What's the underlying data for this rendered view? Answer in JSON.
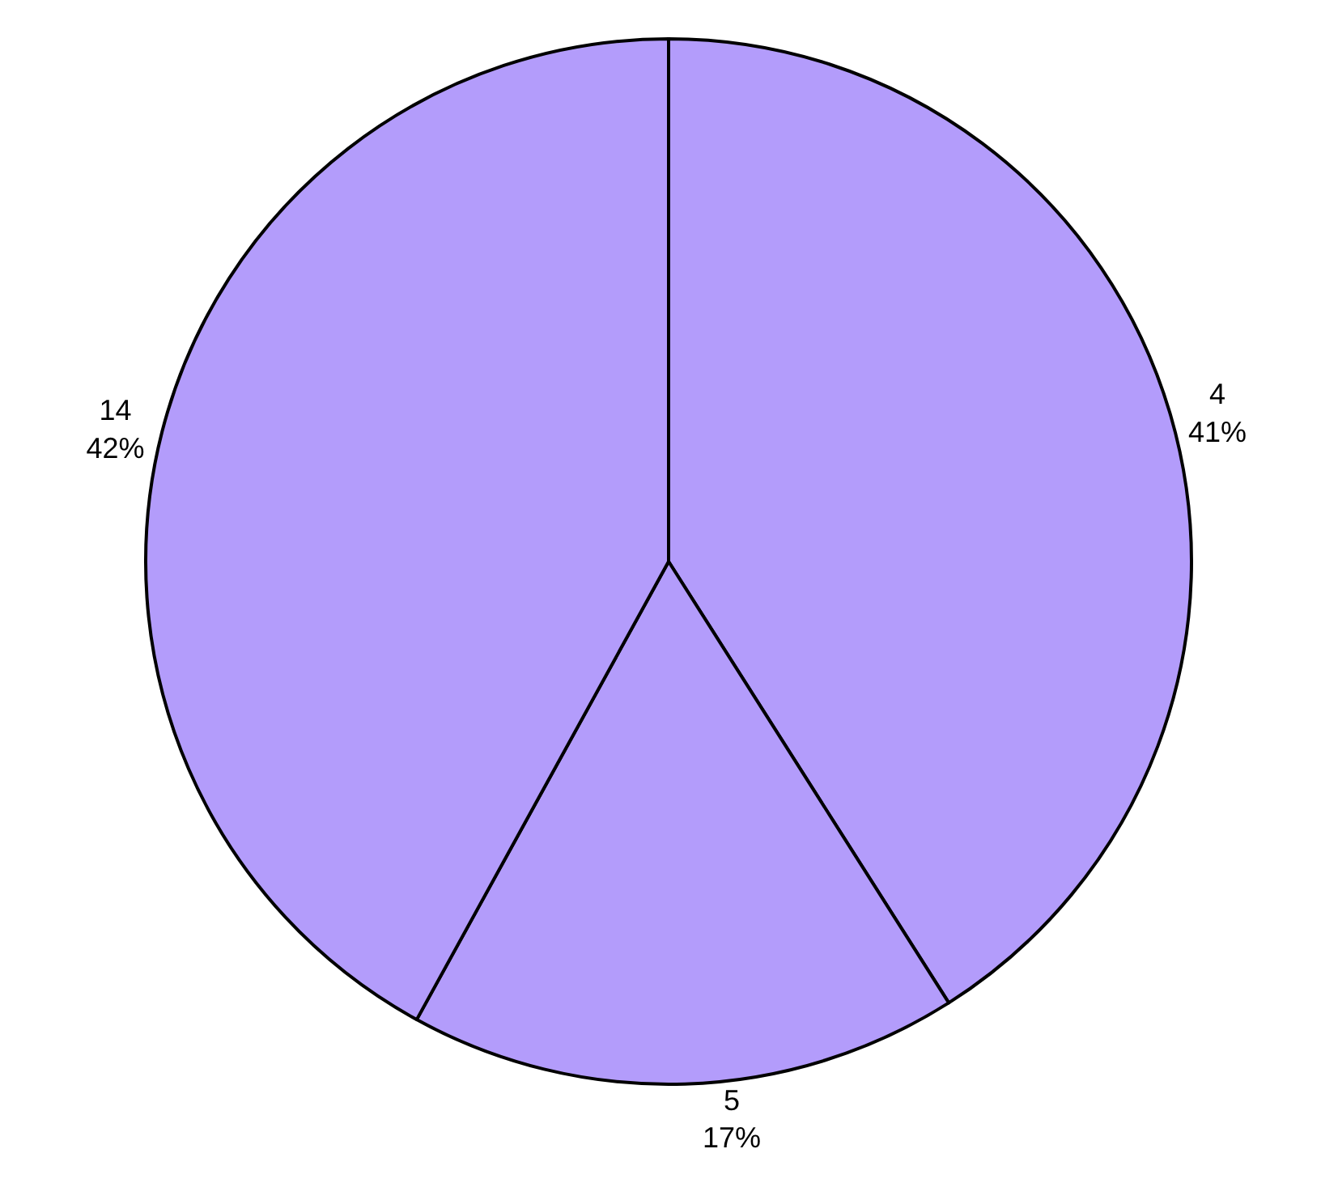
{
  "chart_data": {
    "type": "pie",
    "categories": [
      "4",
      "5",
      "14"
    ],
    "values": [
      41,
      17,
      42
    ],
    "value_labels": [
      "41%",
      "17%",
      "42%"
    ],
    "colors": [
      "#b39cfb",
      "#b39cfb",
      "#b39cfb"
    ],
    "legend": false
  }
}
